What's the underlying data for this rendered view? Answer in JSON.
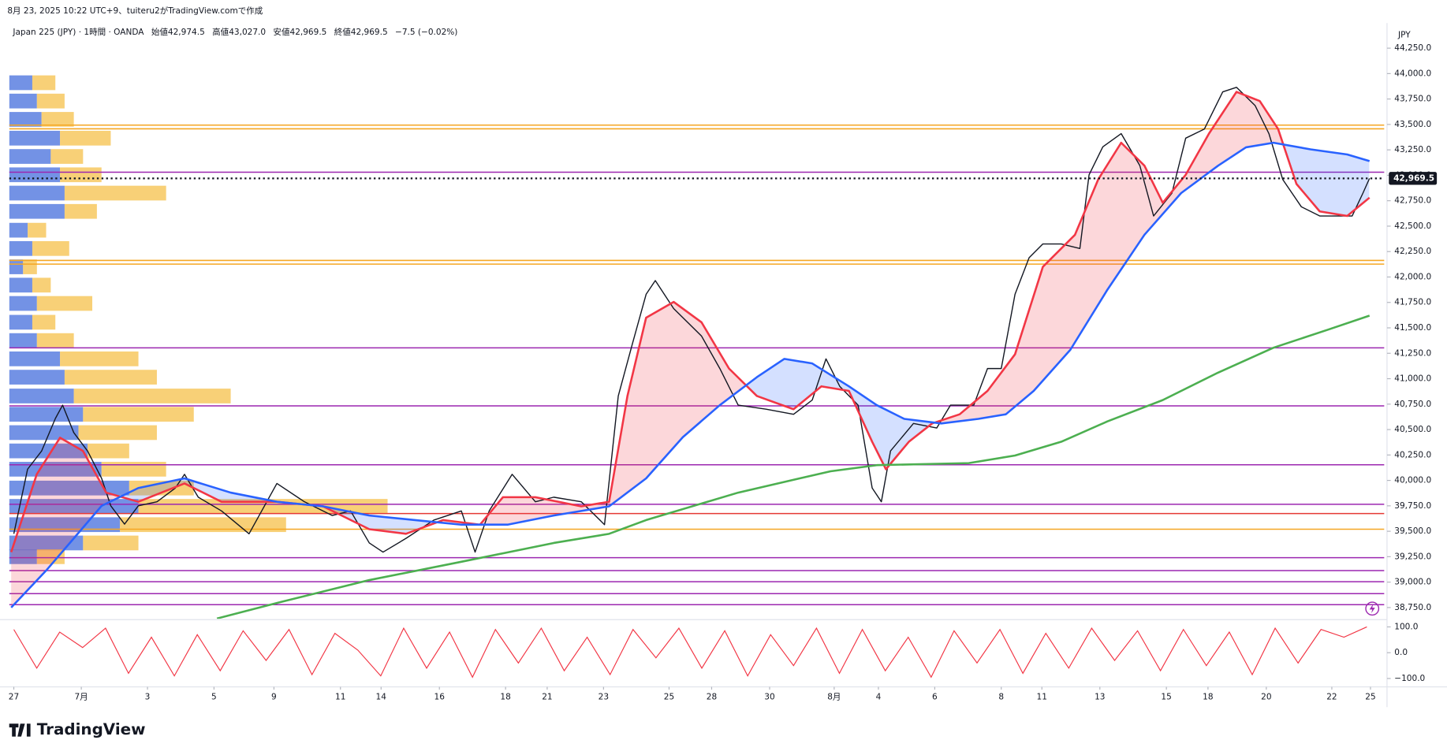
{
  "header": {
    "created": "8月 23, 2025 10:22 UTC+9、tuiteru2がTradingView.comで作成",
    "symbol": "Japan 225 (JPY) · 1時間 · OANDA",
    "ohlc": [
      {
        "label": "始値",
        "value": "42,974.5"
      },
      {
        "label": "高値",
        "value": "43,027.0"
      },
      {
        "label": "安値",
        "value": "42,969.5"
      },
      {
        "label": "終値",
        "value": "42,969.5"
      }
    ],
    "change": "−7.5 (−0.02%)",
    "currency": "JPY"
  },
  "logo": "TradingView",
  "chart_data": {
    "type": "line",
    "xlim": [
      -0.14,
      41.83
    ],
    "ylim": [
      38640,
      44470
    ],
    "xticks": [
      {
        "value": 0,
        "label": "27"
      },
      {
        "value": 2.06,
        "label": "7月"
      },
      {
        "value": 4.08,
        "label": "3"
      },
      {
        "value": 6.11,
        "label": "5"
      },
      {
        "value": 7.94,
        "label": "9"
      },
      {
        "value": 9.97,
        "label": "11"
      },
      {
        "value": 11.21,
        "label": "14"
      },
      {
        "value": 12.99,
        "label": "16"
      },
      {
        "value": 15.01,
        "label": "18"
      },
      {
        "value": 16.28,
        "label": "21"
      },
      {
        "value": 18.0,
        "label": "23"
      },
      {
        "value": 20.0,
        "label": "25"
      },
      {
        "value": 21.3,
        "label": "28"
      },
      {
        "value": 23.07,
        "label": "30"
      },
      {
        "value": 25.04,
        "label": "8月"
      },
      {
        "value": 26.39,
        "label": "4"
      },
      {
        "value": 28.11,
        "label": "6"
      },
      {
        "value": 30.14,
        "label": "8"
      },
      {
        "value": 31.38,
        "label": "11"
      },
      {
        "value": 33.15,
        "label": "13"
      },
      {
        "value": 35.18,
        "label": "15"
      },
      {
        "value": 36.45,
        "label": "18"
      },
      {
        "value": 38.23,
        "label": "20"
      },
      {
        "value": 40.23,
        "label": "22"
      },
      {
        "value": 41.41,
        "label": "25"
      }
    ],
    "yticks": [
      {
        "value": 38750,
        "label": "38,750.0"
      },
      {
        "value": 39000,
        "label": "39,000.0"
      },
      {
        "value": 39250,
        "label": "39,250.0"
      },
      {
        "value": 39500,
        "label": "39,500.0"
      },
      {
        "value": 39750,
        "label": "39,750.0"
      },
      {
        "value": 40000,
        "label": "40,000.0"
      },
      {
        "value": 40250,
        "label": "40,250.0"
      },
      {
        "value": 40500,
        "label": "40,500.0"
      },
      {
        "value": 40750,
        "label": "40,750.0"
      },
      {
        "value": 41000,
        "label": "41,000.0"
      },
      {
        "value": 41250,
        "label": "41,250.0"
      },
      {
        "value": 41500,
        "label": "41,500.0"
      },
      {
        "value": 41750,
        "label": "41,750.0"
      },
      {
        "value": 42000,
        "label": "42,000.0"
      },
      {
        "value": 42250,
        "label": "42,250.0"
      },
      {
        "value": 42500,
        "label": "42,500.0"
      },
      {
        "value": 42750,
        "label": "42,750.0"
      },
      {
        "value": 43000,
        "label": "43,000.0"
      },
      {
        "value": 43250,
        "label": "43,250.0"
      },
      {
        "value": 43500,
        "label": "43,500.0"
      },
      {
        "value": 43750,
        "label": "43,750.0"
      },
      {
        "value": 44000,
        "label": "44,000.0"
      },
      {
        "value": 44250,
        "label": "44,250.0"
      }
    ],
    "last_price": {
      "value": 42969.5,
      "label": "42,969.5"
    },
    "series": [
      {
        "color": "#131722",
        "x": [
          0,
          0.42,
          0.85,
          1.27,
          1.49,
          1.83,
          2.25,
          2.68,
          2.96,
          3.38,
          3.8,
          4.37,
          4.93,
          5.21,
          5.63,
          6.34,
          7.18,
          8.03,
          8.87,
          9.72,
          10.28,
          10.85,
          11.27,
          11.97,
          12.82,
          13.66,
          14.08,
          14.51,
          15.21,
          15.92,
          16.48,
          17.32,
          18.03,
          18.45,
          18.87,
          19.3,
          19.58,
          20.14,
          20.99,
          21.55,
          22.11,
          22.96,
          23.8,
          24.37,
          24.79,
          25.21,
          25.77,
          26.2,
          26.48,
          26.76,
          27.46,
          28.17,
          28.59,
          29.3,
          29.72,
          30.14,
          30.56,
          30.99,
          31.41,
          31.97,
          32.54,
          32.82,
          33.24,
          33.8,
          34.37,
          34.79,
          35.35,
          35.77,
          36.34,
          36.9,
          37.32,
          37.89,
          38.31,
          38.73,
          39.3,
          39.86,
          40.42,
          40.85,
          41.18,
          41.38
        ],
        "values": [
          39475,
          40110,
          40290,
          40610,
          40740,
          40470,
          40290,
          40020,
          39750,
          39570,
          39750,
          39790,
          39925,
          40060,
          39835,
          39700,
          39475,
          39970,
          39790,
          39655,
          39700,
          39385,
          39295,
          39430,
          39610,
          39700,
          39295,
          39700,
          40060,
          39790,
          39835,
          39790,
          39565,
          40830,
          41330,
          41830,
          41965,
          41690,
          41420,
          41100,
          40740,
          40700,
          40650,
          40790,
          41195,
          40925,
          40740,
          39925,
          39790,
          40290,
          40560,
          40515,
          40740,
          40740,
          41100,
          41100,
          41830,
          42190,
          42325,
          42325,
          42280,
          43005,
          43280,
          43410,
          43095,
          42600,
          42825,
          43365,
          43455,
          43820,
          43865,
          43685,
          43410,
          42960,
          42690,
          42600,
          42600,
          42600,
          42825,
          42969.5
        ]
      },
      {
        "color": "#f23645",
        "x": [
          -0.08,
          0.7,
          1.41,
          2.11,
          2.82,
          3.8,
          5.21,
          6.34,
          8.03,
          9.44,
          10.85,
          11.97,
          13.1,
          14.23,
          14.93,
          15.92,
          17.32,
          18.17,
          18.73,
          19.3,
          20.14,
          20.99,
          21.83,
          22.68,
          23.8,
          24.65,
          25.49,
          26.2,
          26.62,
          27.32,
          28.03,
          28.87,
          29.72,
          30.56,
          31.41,
          32.39,
          33.1,
          33.8,
          34.51,
          35.07,
          35.77,
          36.48,
          37.32,
          38.03,
          38.59,
          39.15,
          39.86,
          40.7,
          41.38
        ],
        "values": [
          39295,
          40060,
          40420,
          40290,
          39880,
          39790,
          39970,
          39790,
          39790,
          39745,
          39520,
          39475,
          39610,
          39565,
          39835,
          39835,
          39745,
          39790,
          40830,
          41600,
          41755,
          41555,
          41100,
          40830,
          40700,
          40925,
          40880,
          40380,
          40110,
          40380,
          40560,
          40650,
          40880,
          41240,
          42100,
          42415,
          42960,
          43320,
          43095,
          42730,
          43005,
          43410,
          43820,
          43730,
          43455,
          42915,
          42645,
          42600,
          42780
        ]
      },
      {
        "color": "#2962ff",
        "x": [
          -0.08,
          0.99,
          1.83,
          2.68,
          3.8,
          5.21,
          6.62,
          8.03,
          9.44,
          10.85,
          12.25,
          13.66,
          15.07,
          16.48,
          18.17,
          19.3,
          20.42,
          21.55,
          22.68,
          23.52,
          24.37,
          25.49,
          26.34,
          27.18,
          28.31,
          29.44,
          30.28,
          31.13,
          32.25,
          33.38,
          34.51,
          35.63,
          36.76,
          37.61,
          38.45,
          39.58,
          40.7,
          41.38
        ],
        "values": [
          38750,
          39115,
          39430,
          39750,
          39925,
          40020,
          39880,
          39790,
          39745,
          39655,
          39610,
          39565,
          39565,
          39655,
          39745,
          40020,
          40425,
          40740,
          41015,
          41195,
          41150,
          40925,
          40740,
          40605,
          40560,
          40605,
          40650,
          40880,
          41285,
          41875,
          42415,
          42825,
          43095,
          43275,
          43320,
          43255,
          43205,
          43140
        ]
      },
      {
        "color": "#4caf50",
        "x": [
          6.2,
          8.03,
          10.85,
          13.66,
          16.48,
          18.17,
          19.3,
          22.11,
          24.93,
          26.34,
          29.15,
          30.56,
          31.97,
          33.38,
          35.07,
          36.76,
          38.45,
          40.14,
          41.38
        ],
        "values": [
          38642,
          38795,
          39020,
          39200,
          39385,
          39475,
          39610,
          39880,
          40090,
          40150,
          40170,
          40245,
          40380,
          40580,
          40790,
          41060,
          41305,
          41485,
          41620
        ]
      }
    ],
    "levels": [
      {
        "value": 43493,
        "color": "#f5a623"
      },
      {
        "value": 43457,
        "color": "#f5a623"
      },
      {
        "value": 43030,
        "color": "#9c27b0"
      },
      {
        "value": 42163,
        "color": "#f5a623"
      },
      {
        "value": 42127,
        "color": "#f5a623"
      },
      {
        "value": 41303,
        "color": "#9c27b0"
      },
      {
        "value": 40733,
        "color": "#9c27b0"
      },
      {
        "value": 40154,
        "color": "#9c27b0"
      },
      {
        "value": 39765,
        "color": "#9c27b0"
      },
      {
        "value": 39674,
        "color": "#e53935"
      },
      {
        "value": 39520,
        "color": "#f5a623"
      },
      {
        "value": 39240,
        "color": "#9c27b0"
      },
      {
        "value": 39113,
        "color": "#9c27b0"
      },
      {
        "value": 39004,
        "color": "#9c27b0"
      },
      {
        "value": 38887,
        "color": "#9c27b0"
      },
      {
        "value": 38778,
        "color": "#9c27b0"
      }
    ],
    "profile": {
      "colors": [
        "#5b7fe0",
        "#f5c04a"
      ],
      "prices": [
        43910,
        43730,
        43550,
        43365,
        43185,
        43005,
        42825,
        42645,
        42460,
        42280,
        42100,
        41920,
        41740,
        41555,
        41375,
        41195,
        41015,
        40830,
        40650,
        40470,
        40290,
        40110,
        39925,
        39745,
        39565,
        39385,
        39250
      ],
      "buy": [
        25,
        30,
        35,
        55,
        45,
        55,
        60,
        60,
        20,
        25,
        15,
        25,
        30,
        25,
        30,
        55,
        60,
        70,
        80,
        75,
        85,
        100,
        130,
        140,
        120,
        80,
        30
      ],
      "sell": [
        25,
        30,
        35,
        55,
        35,
        45,
        110,
        35,
        20,
        40,
        15,
        20,
        60,
        25,
        40,
        85,
        100,
        170,
        120,
        85,
        45,
        70,
        70,
        270,
        180,
        60,
        30
      ]
    },
    "oscillator": {
      "color": "#f23645",
      "ylim": [
        -129,
        121
      ],
      "yticks": [
        {
          "value": 100,
          "label": "100.0"
        },
        {
          "value": 0,
          "label": "0.0"
        },
        {
          "value": -100,
          "label": "−100.0"
        }
      ],
      "x": [
        0,
        0.7,
        1.4,
        2.1,
        2.8,
        3.5,
        4.2,
        4.9,
        5.6,
        6.3,
        7,
        7.7,
        8.4,
        9.1,
        9.8,
        10.5,
        11.2,
        11.9,
        12.6,
        13.3,
        14,
        14.7,
        15.4,
        16.1,
        16.8,
        17.5,
        18.2,
        18.9,
        19.6,
        20.3,
        21,
        21.7,
        22.4,
        23.1,
        23.8,
        24.5,
        25.2,
        25.9,
        26.6,
        27.3,
        28,
        28.7,
        29.4,
        30.1,
        30.8,
        31.5,
        32.2,
        32.9,
        33.6,
        34.3,
        35,
        35.7,
        36.4,
        37.1,
        37.8,
        38.5,
        39.2,
        39.9,
        40.6,
        41.3
      ],
      "values": [
        90,
        -60,
        80,
        20,
        95,
        -80,
        60,
        -90,
        70,
        -70,
        85,
        -30,
        90,
        -85,
        75,
        10,
        -90,
        95,
        -60,
        80,
        -95,
        90,
        -40,
        95,
        -70,
        60,
        -85,
        90,
        -20,
        95,
        -60,
        85,
        -90,
        70,
        -50,
        95,
        -80,
        90,
        -70,
        60,
        -95,
        85,
        -40,
        90,
        -80,
        75,
        -60,
        95,
        -30,
        85,
        -70,
        90,
        -50,
        80,
        -85,
        95,
        -40,
        90,
        60,
        100
      ]
    }
  }
}
